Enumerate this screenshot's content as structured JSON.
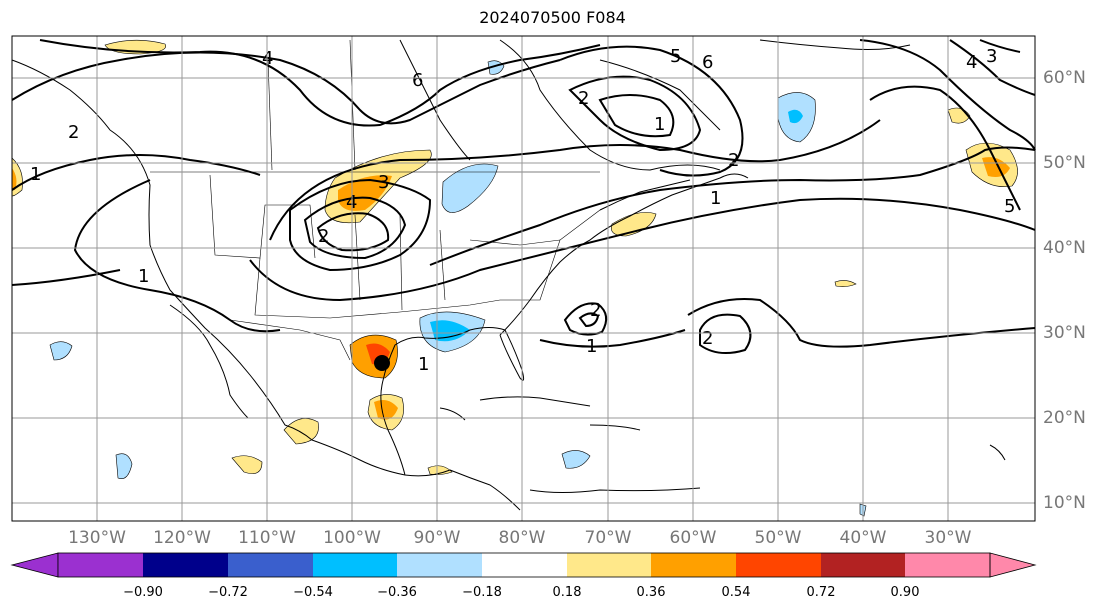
{
  "title": "2024070500 F084",
  "lon_labels": [
    "130°W",
    "120°W",
    "110°W",
    "100°W",
    "90°W",
    "80°W",
    "70°W",
    "60°W",
    "50°W",
    "40°W",
    "30°W"
  ],
  "lat_labels": [
    "60°N",
    "50°N",
    "40°N",
    "30°N",
    "20°N",
    "10°N"
  ],
  "colorbar": {
    "ticks": [
      "−0.90",
      "−0.72",
      "−0.54",
      "−0.36",
      "−0.18",
      "0.18",
      "0.36",
      "0.54",
      "0.72",
      "0.90"
    ],
    "colors": [
      "#9b30d0",
      "#00008b",
      "#3a5fcd",
      "#00bfff",
      "#b0e0ff",
      "#ffffff",
      "#ffe88a",
      "#ffa000",
      "#ff4500",
      "#b22222",
      "#ff88aa"
    ]
  },
  "contour_labels": [
    "4",
    "6",
    "5",
    "6",
    "2",
    "1",
    "3",
    "4",
    "2",
    "1",
    "2",
    "1",
    "1",
    "2",
    "1",
    "2",
    "1",
    "2",
    "4",
    "3",
    "5"
  ],
  "storm_marker": "tropical-cyclone-center"
}
